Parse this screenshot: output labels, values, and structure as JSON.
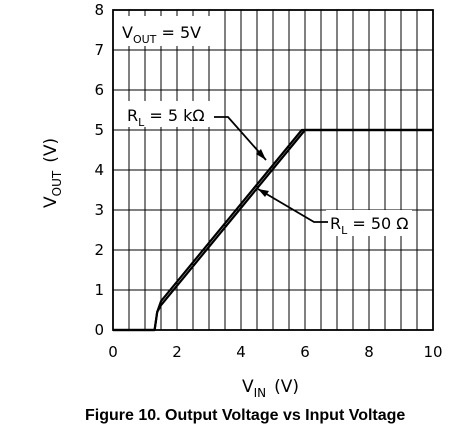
{
  "chart_data": {
    "type": "line",
    "xlim": [
      0,
      10
    ],
    "ylim": [
      0,
      8
    ],
    "xticks": [
      "0",
      "2",
      "4",
      "6",
      "8",
      "10"
    ],
    "yticks": [
      "0",
      "1",
      "2",
      "3",
      "4",
      "5",
      "6",
      "7",
      "8"
    ],
    "grid": true,
    "xlabel": {
      "main": "V",
      "sub": "IN",
      "unit": "(V)"
    },
    "ylabel": {
      "main": "V",
      "sub": "OUT",
      "unit": "(V)"
    },
    "series": [
      {
        "name": "RL = 5 kΩ",
        "x": [
          0,
          1.3,
          1.38,
          1.5,
          5.9,
          10
        ],
        "y": [
          0,
          0,
          0.45,
          0.72,
          5.0,
          5.0
        ]
      },
      {
        "name": "RL = 50 Ω",
        "x": [
          0,
          1.3,
          1.38,
          1.5,
          6.0,
          10
        ],
        "y": [
          0,
          0,
          0.45,
          0.62,
          5.0,
          5.0
        ]
      }
    ],
    "annotations": [
      {
        "id": "vout",
        "main": "V",
        "sub": "OUT",
        "rest": " = 5V"
      },
      {
        "id": "rl5k",
        "main": "R",
        "sub": "L",
        "rest": " = 5 kΩ"
      },
      {
        "id": "rl50",
        "main": "R",
        "sub": "L",
        "rest": " = 50 Ω"
      }
    ],
    "caption": "Figure 10. Output Voltage vs Input Voltage"
  }
}
